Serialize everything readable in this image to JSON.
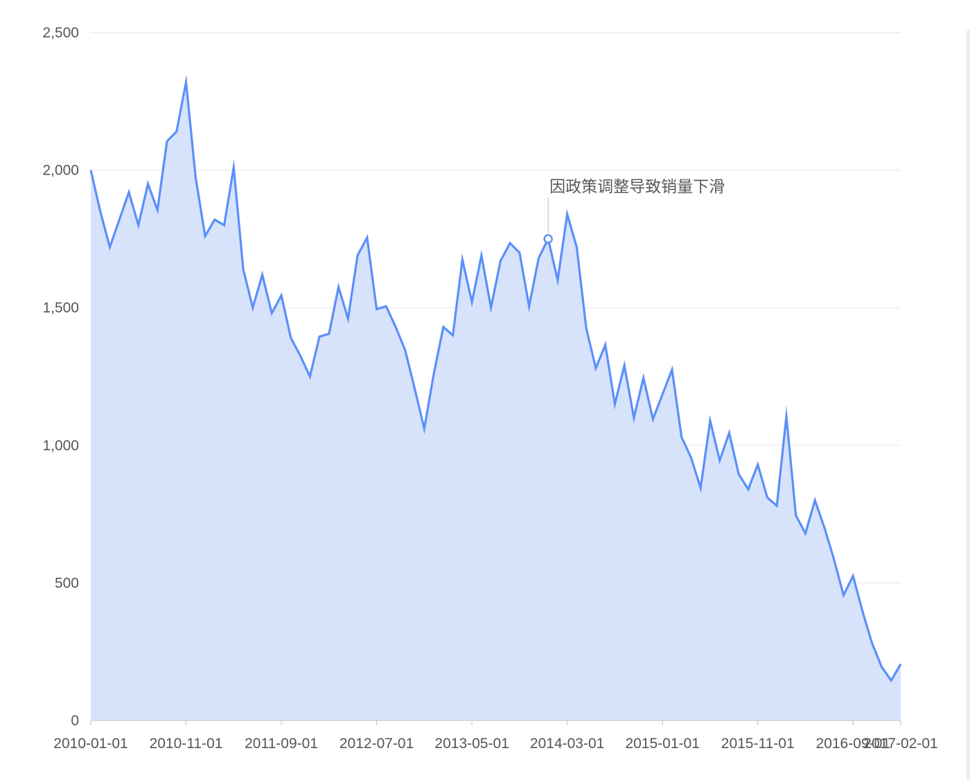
{
  "chart_data": {
    "type": "area",
    "title": "",
    "xlabel": "",
    "ylabel": "",
    "ylim": [
      0,
      2500
    ],
    "y_ticks": [
      0,
      500,
      1000,
      1500,
      2000,
      2500
    ],
    "y_tick_labels": [
      "0",
      "500",
      "1,000",
      "1,500",
      "2,000",
      "2,500"
    ],
    "x_tick_labels": [
      "2010-01-01",
      "2010-11-01",
      "2011-09-01",
      "2012-07-01",
      "2013-05-01",
      "2014-03-01",
      "2015-01-01",
      "2015-11-01",
      "2016-09-01",
      "2017-02-01"
    ],
    "x_start": "2010-01-01",
    "x_end": "2017-02-01",
    "grid": true,
    "legend": "none",
    "line_color": "#5b8ff9",
    "fill_color": "#d6e3fb",
    "series": [
      {
        "x": [
          "2010-01-01",
          "2010-02-01",
          "2010-03-01",
          "2010-04-01",
          "2010-05-01",
          "2010-06-01",
          "2010-07-01",
          "2010-08-01",
          "2010-09-01",
          "2010-10-01",
          "2010-11-01",
          "2010-12-01",
          "2011-01-01",
          "2011-02-01",
          "2011-03-01",
          "2011-04-01",
          "2011-05-01",
          "2011-06-01",
          "2011-07-01",
          "2011-08-01",
          "2011-09-01",
          "2011-10-01",
          "2011-11-01",
          "2011-12-01",
          "2012-01-01",
          "2012-02-01",
          "2012-03-01",
          "2012-04-01",
          "2012-05-01",
          "2012-06-01",
          "2012-07-01",
          "2012-08-01",
          "2012-09-01",
          "2012-10-01",
          "2012-11-01",
          "2012-12-01",
          "2013-01-01",
          "2013-02-01",
          "2013-03-01",
          "2013-04-01",
          "2013-05-01",
          "2013-06-01",
          "2013-07-01",
          "2013-08-01",
          "2013-09-01",
          "2013-10-01",
          "2013-11-01",
          "2013-12-01",
          "2014-01-01",
          "2014-02-01",
          "2014-03-01",
          "2014-04-01",
          "2014-05-01",
          "2014-06-01",
          "2014-07-01",
          "2014-08-01",
          "2014-09-01",
          "2014-10-01",
          "2014-11-01",
          "2014-12-01",
          "2015-01-01",
          "2015-02-01",
          "2015-03-01",
          "2015-04-01",
          "2015-05-01",
          "2015-06-01",
          "2015-07-01",
          "2015-08-01",
          "2015-09-01",
          "2015-10-01",
          "2015-11-01",
          "2015-12-01",
          "2016-01-01",
          "2016-02-01",
          "2016-03-01",
          "2016-04-01",
          "2016-05-01",
          "2016-06-01",
          "2016-07-01",
          "2016-08-01",
          "2016-09-01",
          "2016-10-01",
          "2016-11-01",
          "2016-12-01",
          "2017-01-01",
          "2017-02-01"
        ],
        "values": [
          2000,
          1850,
          1720,
          1820,
          1920,
          1800,
          1950,
          1855,
          2105,
          2140,
          2320,
          1975,
          1760,
          1820,
          1800,
          2010,
          1640,
          1500,
          1620,
          1480,
          1545,
          1390,
          1325,
          1250,
          1395,
          1405,
          1575,
          1460,
          1690,
          1755,
          1495,
          1505,
          1430,
          1345,
          1205,
          1060,
          1260,
          1430,
          1400,
          1675,
          1520,
          1690,
          1500,
          1670,
          1735,
          1700,
          1505,
          1680,
          1750,
          1600,
          1840,
          1720,
          1425,
          1280,
          1365,
          1150,
          1290,
          1100,
          1245,
          1095,
          1185,
          1275,
          1030,
          955,
          845,
          1090,
          945,
          1045,
          895,
          840,
          930,
          810,
          780,
          1105,
          745,
          680,
          800,
          700,
          585,
          455,
          525,
          395,
          280,
          195,
          145,
          205
        ]
      }
    ],
    "annotations": [
      {
        "x": "2014-01-01",
        "y": 1750,
        "text": "因政策调整导致销量下滑"
      }
    ]
  }
}
